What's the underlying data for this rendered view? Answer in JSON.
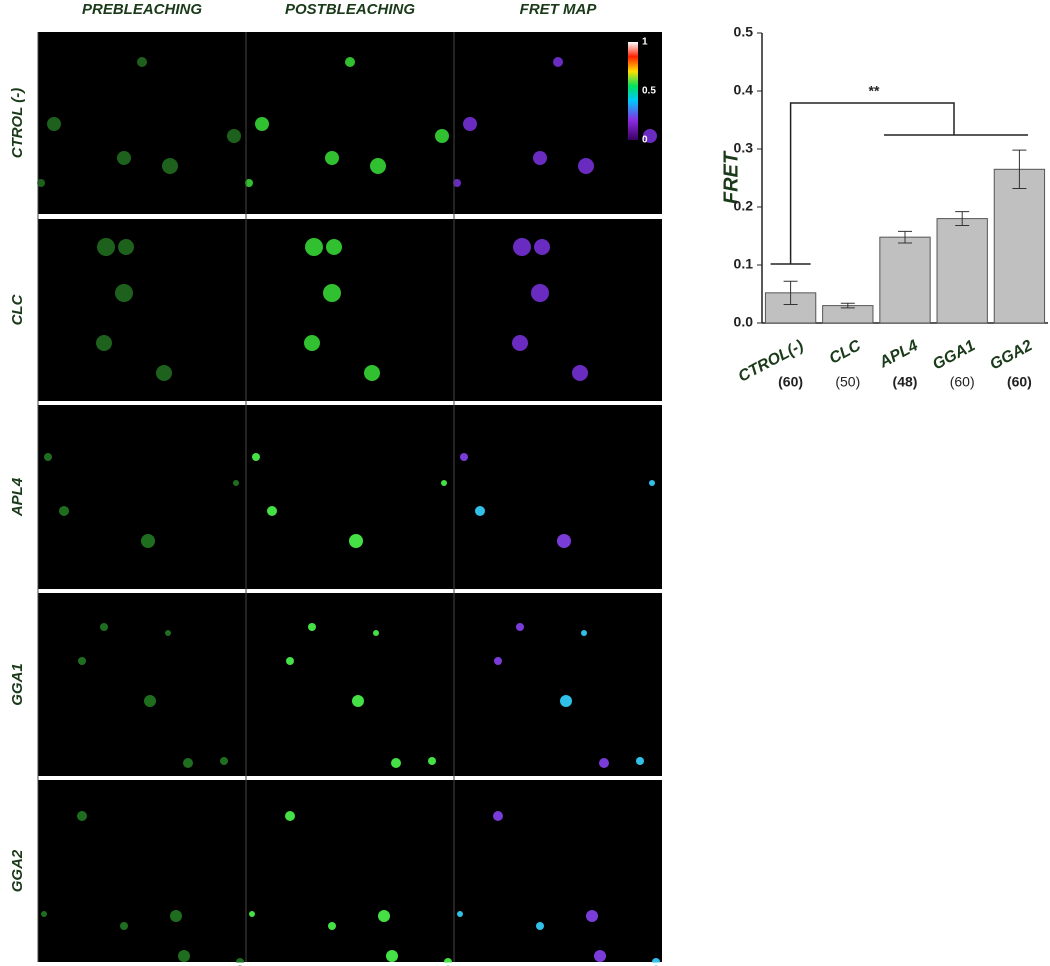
{
  "figure": {
    "columns": [
      "PREBLEACHING",
      "POSTBLEACHING",
      "FRET MAP"
    ],
    "rows": [
      "CTROL (-)",
      "CLC",
      "APL4",
      "GGA1",
      "GGA2"
    ],
    "colorbar_ticks": [
      0,
      0.5,
      1
    ]
  },
  "chart_data": {
    "type": "bar",
    "categories": [
      "CTROL(-)",
      "CLC",
      "APL4",
      "GGA1",
      "GGA2"
    ],
    "values": [
      0.052,
      0.03,
      0.148,
      0.18,
      0.265
    ],
    "errors": [
      0.02,
      0.004,
      0.01,
      0.012,
      0.033
    ],
    "sample_sizes": [
      "(60)",
      "(50)",
      "(48)",
      "(60)",
      "(60)"
    ],
    "ylabel": "FRET",
    "annotation": "**",
    "color": "#c0c0c0",
    "ylim": [
      0,
      0.5
    ],
    "yticks": [
      {
        "value": 0,
        "label": "0.0"
      },
      0.1,
      0.2,
      0.3,
      0.4,
      0.5
    ]
  }
}
